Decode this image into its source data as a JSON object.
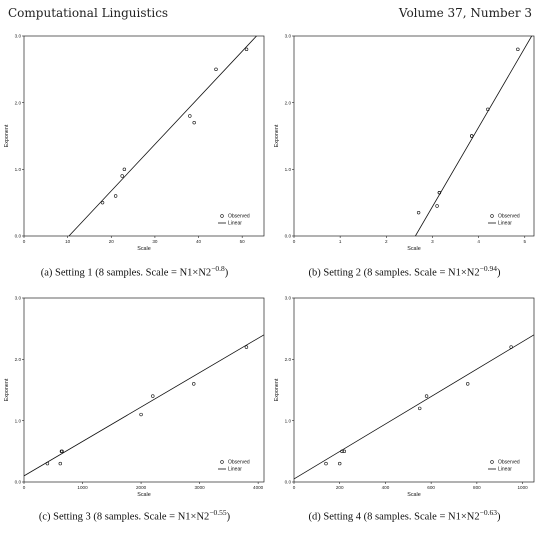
{
  "header": {
    "journal": "Computational Linguistics",
    "volume": "Volume 37, Number 3"
  },
  "chart_data": [
    {
      "type": "scatter",
      "caption_main": "(a)  Setting 1 (8 samples. Scale = N1×N2",
      "caption_exp": "−0.8",
      "caption_close": ")",
      "xlabel": "Scale",
      "ylabel": "Exponent",
      "xlim": [
        0,
        55
      ],
      "ylim": [
        0,
        3.0
      ],
      "xticks": [
        0,
        10,
        20,
        30,
        40,
        50
      ],
      "xtick_labels": [
        "0",
        "10",
        "20",
        "30",
        "40",
        "50"
      ],
      "yticks": [
        0,
        1.0,
        2.0,
        3.0
      ],
      "ytick_labels": [
        "0.0",
        "1.0",
        "2.0",
        "3.0"
      ],
      "points": [
        [
          18,
          0.5
        ],
        [
          21,
          0.6
        ],
        [
          22.5,
          0.9
        ],
        [
          23,
          1.0
        ],
        [
          38,
          1.8
        ],
        [
          39,
          1.7
        ],
        [
          44,
          2.5
        ],
        [
          51,
          2.8
        ]
      ],
      "fit_line": [
        [
          10.3,
          0
        ],
        [
          54,
          3.05
        ]
      ],
      "legend": {
        "observed": "Observed",
        "linear": "Linear"
      },
      "legend_position": "bottom-right"
    },
    {
      "type": "scatter",
      "caption_main": "(b)  Setting 2 (8 samples. Scale = N1×N2",
      "caption_exp": "−0.94",
      "caption_close": ")",
      "xlabel": "Scale",
      "ylabel": "Exponent",
      "xlim": [
        0,
        5.2
      ],
      "ylim": [
        0,
        3.0
      ],
      "xticks": [
        0,
        1,
        2,
        3,
        4,
        5
      ],
      "xtick_labels": [
        "0",
        "1",
        "2",
        "3",
        "4",
        "5"
      ],
      "yticks": [
        0,
        1.0,
        2.0,
        3.0
      ],
      "ytick_labels": [
        "0.0",
        "1.0",
        "2.0",
        "3.0"
      ],
      "points": [
        [
          2.7,
          0.35
        ],
        [
          3.1,
          0.45
        ],
        [
          3.15,
          0.65
        ],
        [
          3.15,
          0.65
        ],
        [
          3.85,
          1.5
        ],
        [
          3.85,
          1.5
        ],
        [
          4.2,
          1.9
        ],
        [
          4.85,
          2.8
        ]
      ],
      "fit_line": [
        [
          2.63,
          0
        ],
        [
          5.15,
          3.0
        ]
      ],
      "legend": {
        "observed": "Observed",
        "linear": "Linear"
      },
      "legend_position": "bottom-right"
    },
    {
      "type": "scatter",
      "caption_main": "(c)  Setting 3 (8 samples. Scale = N1×N2",
      "caption_exp": "−0.55",
      "caption_close": ")",
      "xlabel": "Scale",
      "ylabel": "Exponent",
      "xlim": [
        0,
        4100
      ],
      "ylim": [
        0,
        3.0
      ],
      "xticks": [
        0,
        1000,
        2000,
        3000,
        4000
      ],
      "xtick_labels": [
        "0",
        "1000",
        "2000",
        "3000",
        "4000"
      ],
      "yticks": [
        0,
        1.0,
        2.0,
        3.0
      ],
      "ytick_labels": [
        "0.0",
        "1.0",
        "2.0",
        "3.0"
      ],
      "points": [
        [
          400,
          0.3
        ],
        [
          620,
          0.3
        ],
        [
          640,
          0.5
        ],
        [
          650,
          0.5
        ],
        [
          2000,
          1.1
        ],
        [
          2200,
          1.4
        ],
        [
          2900,
          1.6
        ],
        [
          3800,
          2.2
        ]
      ],
      "fit_line": [
        [
          0,
          0.1
        ],
        [
          4100,
          2.4
        ]
      ],
      "legend": {
        "observed": "Observed",
        "linear": "Linear"
      },
      "legend_position": "bottom-right"
    },
    {
      "type": "scatter",
      "caption_main": "(d)  Setting 4 (8 samples. Scale = N1×N2",
      "caption_exp": "−0.63",
      "caption_close": ")",
      "xlabel": "Scale",
      "ylabel": "Exponent",
      "xlim": [
        0,
        1050
      ],
      "ylim": [
        0,
        3.0
      ],
      "xticks": [
        0,
        200,
        400,
        600,
        800,
        1000
      ],
      "xtick_labels": [
        "0",
        "200",
        "400",
        "600",
        "800",
        "1000"
      ],
      "yticks": [
        0,
        1.0,
        2.0,
        3.0
      ],
      "ytick_labels": [
        "0.0",
        "1.0",
        "2.0",
        "3.0"
      ],
      "points": [
        [
          140,
          0.3
        ],
        [
          200,
          0.3
        ],
        [
          210,
          0.5
        ],
        [
          220,
          0.5
        ],
        [
          550,
          1.2
        ],
        [
          580,
          1.4
        ],
        [
          760,
          1.6
        ],
        [
          950,
          2.2
        ]
      ],
      "fit_line": [
        [
          0,
          0.05
        ],
        [
          1050,
          2.4
        ]
      ],
      "legend": {
        "observed": "Observed",
        "linear": "Linear"
      },
      "legend_position": "bottom-right"
    }
  ]
}
